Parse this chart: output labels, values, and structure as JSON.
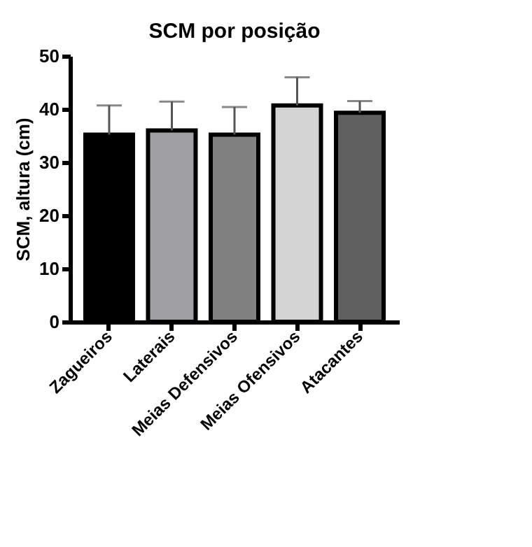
{
  "chart_data": {
    "type": "bar",
    "title": "SCM por posição",
    "ylabel": "SCM, altura (cm)",
    "categories": [
      "Zagueiros",
      "Laterais",
      "Meias Defensivos",
      "Meias Ofensivos",
      "Atacantes"
    ],
    "values": [
      35.2,
      36.0,
      35.2,
      40.7,
      39.3
    ],
    "colors": [
      "#000000",
      "#a0a0a4",
      "#808080",
      "#d4d4d4",
      "#606060"
    ],
    "errors": [
      [
        35.2,
        40.7
      ],
      [
        36.0,
        41.4
      ],
      [
        35.2,
        40.4
      ],
      [
        40.7,
        46.0
      ],
      [
        39.3,
        41.5
      ]
    ],
    "ylim": [
      0,
      50
    ],
    "yticks": [
      0,
      10,
      20,
      30,
      40,
      50
    ],
    "grid": false
  }
}
